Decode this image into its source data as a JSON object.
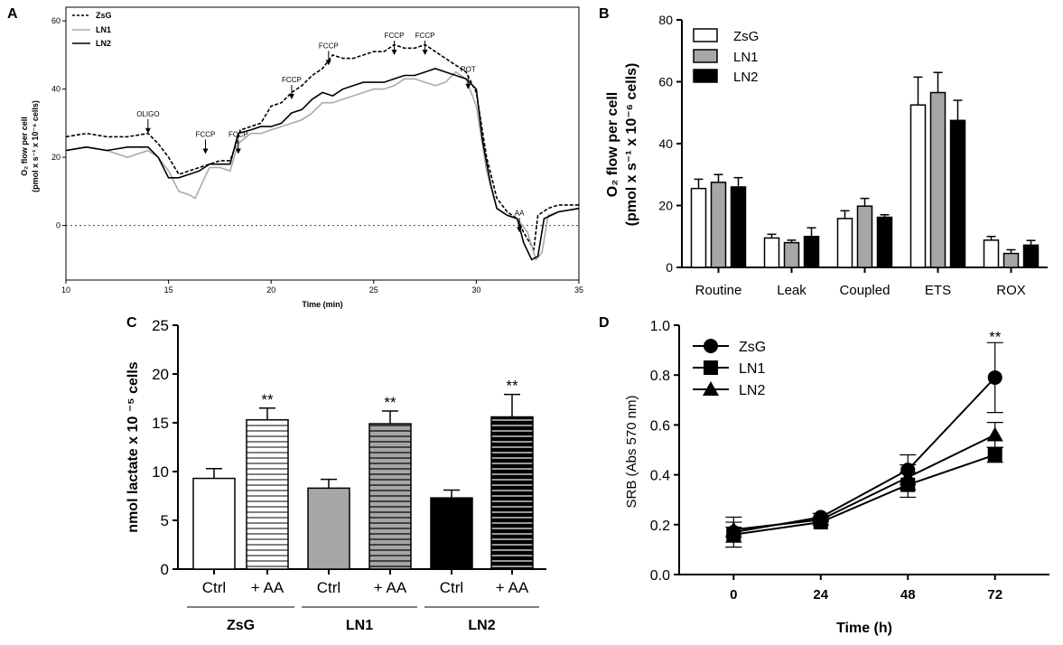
{
  "panels": {
    "A": {
      "letter": "A"
    },
    "B": {
      "letter": "B"
    },
    "C": {
      "letter": "C"
    },
    "D": {
      "letter": "D"
    }
  },
  "chart_data": [
    {
      "panel": "A",
      "type": "line",
      "xlabel": "Time (min)",
      "ylabel_line1": "O₂ flow per cell",
      "ylabel_line2": "(pmol x s⁻¹ x 10⁻⁶ cells)",
      "xlim": [
        10,
        35
      ],
      "ylim": [
        -16,
        64
      ],
      "xticks": [
        10,
        15,
        20,
        25,
        30,
        35
      ],
      "yticks": [
        0,
        20,
        40,
        60
      ],
      "reference_line_y": 0,
      "legend": [
        {
          "name": "ZsG",
          "style": "dashed",
          "color": "#000000"
        },
        {
          "name": "LN1",
          "style": "solid",
          "color": "#aaaaaa"
        },
        {
          "name": "LN2",
          "style": "solid",
          "color": "#000000"
        }
      ],
      "annotations": [
        {
          "label": "OLIGO",
          "x": 14.0,
          "y": 32
        },
        {
          "label": "FCCP",
          "x": 16.8,
          "y": 26
        },
        {
          "label": "FCCP",
          "x": 18.4,
          "y": 26
        },
        {
          "label": "FCCP",
          "x": 21.0,
          "y": 42
        },
        {
          "label": "FCCP",
          "x": 22.8,
          "y": 52
        },
        {
          "label": "FCCP",
          "x": 26.0,
          "y": 55
        },
        {
          "label": "FCCP",
          "x": 27.5,
          "y": 55
        },
        {
          "label": "ROT",
          "x": 29.6,
          "y": 45
        },
        {
          "label": "AA",
          "x": 32.1,
          "y": 3
        }
      ],
      "series": [
        {
          "name": "ZsG",
          "x": [
            10,
            11,
            12,
            13,
            14,
            14.5,
            15,
            15.5,
            16,
            16.5,
            17,
            17.5,
            18,
            18.3,
            18.5,
            19,
            19.5,
            20,
            20.5,
            21,
            21.5,
            22,
            22.5,
            23,
            23.5,
            24,
            24.5,
            25,
            25.5,
            26,
            26.5,
            27,
            27.5,
            28,
            28.5,
            29,
            29.5,
            30,
            30.5,
            31,
            31.5,
            32,
            32.3,
            32.8,
            33,
            33.5,
            34,
            35
          ],
          "y": [
            26,
            27,
            26,
            26,
            27,
            24,
            20,
            15,
            16,
            17,
            18,
            19,
            19,
            24,
            28,
            29,
            30,
            35,
            36,
            39,
            41,
            44,
            46,
            50,
            49,
            49,
            50,
            51,
            51,
            53,
            52,
            52,
            53,
            51,
            49,
            47,
            45,
            39,
            20,
            8,
            4,
            2,
            -2,
            -7,
            3,
            5,
            6,
            6
          ]
        },
        {
          "name": "LN1",
          "x": [
            10,
            11,
            12,
            13,
            14,
            14.5,
            15,
            15.5,
            16,
            16.3,
            16.6,
            17,
            17.5,
            18,
            18.4,
            19,
            19.5,
            20,
            20.5,
            21,
            21.5,
            22,
            22.5,
            23,
            23.5,
            24,
            24.5,
            25,
            25.5,
            26,
            26.5,
            27,
            27.5,
            28,
            28.5,
            29,
            29.5,
            30,
            30.5,
            31,
            31.5,
            32,
            32.5,
            32.9,
            33.2,
            33.5,
            34,
            35
          ],
          "y": [
            22,
            23,
            22,
            20,
            22,
            20,
            16,
            10,
            9,
            8,
            12,
            17,
            17,
            16,
            24,
            27,
            27,
            28,
            29,
            30,
            31,
            33,
            36,
            36,
            37,
            38,
            39,
            40,
            40,
            41,
            43,
            43,
            42,
            41,
            42,
            45,
            43,
            35,
            16,
            5,
            3,
            2,
            -2,
            -10,
            -8,
            3,
            4,
            5
          ]
        },
        {
          "name": "LN2",
          "x": [
            10,
            11,
            12,
            13,
            14,
            14.5,
            15,
            15.5,
            16,
            16.5,
            17,
            17.5,
            18,
            18.4,
            19,
            19.5,
            20,
            20.5,
            21,
            21.5,
            22,
            22.5,
            23,
            23.5,
            24,
            24.5,
            25,
            25.5,
            26,
            26.5,
            27,
            27.5,
            28,
            28.5,
            29,
            29.5,
            30,
            30.3,
            30.7,
            31,
            31.5,
            32,
            32.3,
            32.7,
            33,
            33.3,
            34,
            35
          ],
          "y": [
            22,
            23,
            22,
            23,
            23,
            20,
            14,
            14,
            15,
            16,
            18,
            18,
            18,
            27,
            28,
            29,
            29,
            30,
            33,
            34,
            37,
            39,
            38,
            40,
            41,
            42,
            42,
            42,
            43,
            44,
            44,
            45,
            46,
            45,
            44,
            43,
            40,
            25,
            12,
            5,
            3,
            2,
            -5,
            -10,
            -9,
            2,
            4,
            5
          ]
        }
      ]
    },
    {
      "panel": "B",
      "type": "bar",
      "ylabel_line1": "O₂ flow per cell",
      "ylabel_line2": "(pmol x s⁻¹ x 10⁻⁶ cells)",
      "ylim": [
        0,
        80
      ],
      "yticks": [
        0,
        20,
        40,
        60,
        80
      ],
      "categories": [
        "Routine",
        "Leak",
        "Coupled",
        "ETS",
        "ROX"
      ],
      "series": [
        {
          "name": "ZsG",
          "color": "#ffffff",
          "values": [
            25.5,
            9.5,
            15.8,
            52.5,
            8.8
          ],
          "errors": [
            3.0,
            1.2,
            2.5,
            9.0,
            1.2
          ]
        },
        {
          "name": "LN1",
          "color": "#a6a6a6",
          "values": [
            27.5,
            8.0,
            19.8,
            56.5,
            4.5
          ],
          "errors": [
            2.5,
            0.8,
            2.5,
            6.5,
            1.2
          ]
        },
        {
          "name": "LN2",
          "color": "#000000",
          "values": [
            26.0,
            10.0,
            16.2,
            47.5,
            7.2
          ],
          "errors": [
            3.0,
            2.8,
            0.8,
            6.5,
            1.5
          ]
        }
      ]
    },
    {
      "panel": "C",
      "type": "bar",
      "ylabel": "nmol lactate x 10 ⁻⁵ cells",
      "ylim": [
        0,
        25
      ],
      "yticks": [
        0,
        5,
        10,
        15,
        20,
        25
      ],
      "bars": [
        {
          "label": "Ctrl",
          "group": "ZsG",
          "fill": "white",
          "value": 9.3,
          "error": 1.0,
          "sig": ""
        },
        {
          "label": "+ AA",
          "group": "ZsG",
          "fill": "white-hatch",
          "value": 15.3,
          "error": 1.2,
          "sig": "**"
        },
        {
          "label": "Ctrl",
          "group": "LN1",
          "fill": "grey",
          "value": 8.3,
          "error": 0.9,
          "sig": ""
        },
        {
          "label": "+ AA",
          "group": "LN1",
          "fill": "grey-hatch",
          "value": 14.9,
          "error": 1.3,
          "sig": "**"
        },
        {
          "label": "Ctrl",
          "group": "LN2",
          "fill": "black",
          "value": 7.3,
          "error": 0.8,
          "sig": ""
        },
        {
          "label": "+ AA",
          "group": "LN2",
          "fill": "black-hatch",
          "value": 15.6,
          "error": 2.3,
          "sig": "**"
        }
      ],
      "groups": [
        "ZsG",
        "LN1",
        "LN2"
      ]
    },
    {
      "panel": "D",
      "type": "line",
      "xlabel": "Time (h)",
      "ylabel": "SRB (Abs 570 nm)",
      "xlim": [
        -15,
        87
      ],
      "ylim": [
        0,
        1.0
      ],
      "xticks": [
        0,
        24,
        48,
        72
      ],
      "yticks": [
        "0.0",
        "0.2",
        "0.4",
        "0.6",
        "0.8",
        "1.0"
      ],
      "annotations": [
        {
          "label": "**",
          "x": 72,
          "y": 0.97
        }
      ],
      "series": [
        {
          "name": "ZsG",
          "marker": "circle",
          "x": [
            0,
            24,
            48,
            72
          ],
          "y": [
            0.17,
            0.23,
            0.42,
            0.79
          ],
          "errors": [
            0.06,
            0.015,
            0.06,
            0.14
          ]
        },
        {
          "name": "LN1",
          "marker": "square",
          "x": [
            0,
            24,
            48,
            72
          ],
          "y": [
            0.16,
            0.21,
            0.36,
            0.48
          ],
          "errors": [
            0.03,
            0.01,
            0.05,
            0.03
          ]
        },
        {
          "name": "LN2",
          "marker": "triangle",
          "x": [
            0,
            24,
            48,
            72
          ],
          "y": [
            0.18,
            0.22,
            0.39,
            0.56
          ],
          "errors": [
            0.03,
            0.01,
            0.05,
            0.05
          ]
        }
      ]
    }
  ]
}
